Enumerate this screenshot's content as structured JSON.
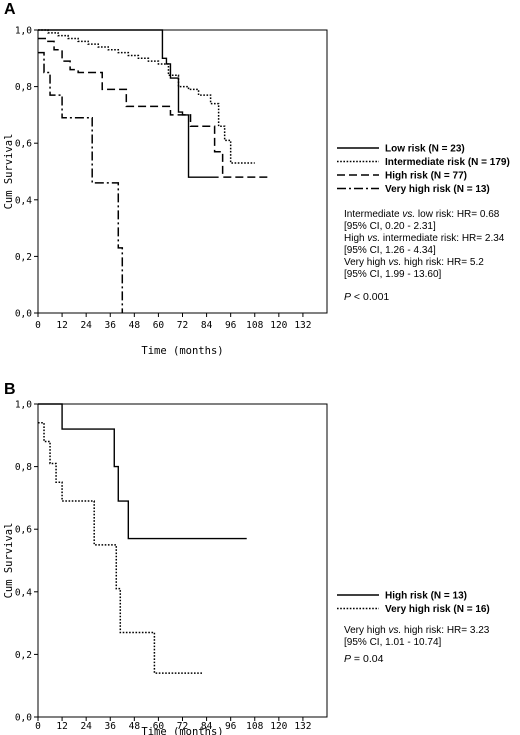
{
  "chart_data": [
    {
      "panel": "A",
      "type": "line",
      "xlabel": "Time (months)",
      "ylabel": "Cum Survival",
      "xlim": [
        0,
        144
      ],
      "ylim": [
        0,
        1.0
      ],
      "x_ticks": [
        "0",
        "12",
        "24",
        "36",
        "48",
        "60",
        "72",
        "84",
        "96",
        "108",
        "120",
        "132"
      ],
      "y_ticks": [
        "1,0",
        "0,8",
        "0,6",
        "0,4",
        "0,2",
        "0,0"
      ],
      "grid": false,
      "legend_position": "right",
      "series": [
        {
          "name": "Low risk (N = 23)",
          "style": "solid",
          "x": [
            0,
            60,
            62,
            64,
            66,
            70,
            72,
            75,
            90
          ],
          "y": [
            1.0,
            1.0,
            0.9,
            0.88,
            0.83,
            0.71,
            0.7,
            0.48,
            0.48
          ]
        },
        {
          "name": "Intermediate risk (N = 179)",
          "style": "dotted",
          "x": [
            0,
            5,
            10,
            15,
            20,
            25,
            30,
            35,
            40,
            45,
            50,
            55,
            60,
            65,
            70,
            75,
            80,
            86,
            90,
            93,
            96,
            108
          ],
          "y": [
            1.0,
            0.99,
            0.98,
            0.97,
            0.96,
            0.95,
            0.94,
            0.93,
            0.92,
            0.91,
            0.9,
            0.89,
            0.88,
            0.84,
            0.8,
            0.79,
            0.77,
            0.74,
            0.66,
            0.61,
            0.53,
            0.53
          ]
        },
        {
          "name": "High risk (N = 77)",
          "style": "dashed",
          "x": [
            0,
            4,
            8,
            12,
            16,
            20,
            28,
            32,
            40,
            44,
            64,
            66,
            72,
            76,
            84,
            88,
            92,
            116
          ],
          "y": [
            0.97,
            0.96,
            0.93,
            0.89,
            0.86,
            0.85,
            0.85,
            0.79,
            0.79,
            0.73,
            0.73,
            0.7,
            0.7,
            0.66,
            0.66,
            0.57,
            0.48,
            0.48
          ]
        },
        {
          "name": "Very high risk (N = 13)",
          "style": "dashdot",
          "x": [
            0,
            3,
            6,
            9,
            12,
            19,
            27,
            36,
            40,
            42
          ],
          "y": [
            0.92,
            0.85,
            0.77,
            0.77,
            0.69,
            0.69,
            0.46,
            0.46,
            0.23,
            0.0
          ]
        }
      ],
      "annotations": [
        "Intermediate vs. low risk: HR= 0.68",
        "[95% CI, 0.20 - 2.31]",
        "High vs. intermediate risk: HR= 2.34",
        "[95% CI, 1.26 - 4.34]",
        "Very high vs. high risk: HR= 5.2",
        "[95% CI, 1.99 - 13.60]"
      ],
      "p_label": "P",
      "p_value": "< 0.001"
    },
    {
      "panel": "B",
      "type": "line",
      "xlabel": "Time (months)",
      "ylabel": "Cum Survival",
      "xlim": [
        0,
        144
      ],
      "ylim": [
        0,
        1.0
      ],
      "x_ticks": [
        "0",
        "12",
        "24",
        "36",
        "48",
        "60",
        "72",
        "84",
        "96",
        "108",
        "120",
        "132"
      ],
      "y_ticks": [
        "1,0",
        "0,8",
        "0,6",
        "0,4",
        "0,2",
        "0,0"
      ],
      "grid": false,
      "legend_position": "right",
      "series": [
        {
          "name": "High risk (N = 13)",
          "style": "solid",
          "x": [
            0,
            12,
            36,
            38,
            40,
            45,
            104
          ],
          "y": [
            1.0,
            0.92,
            0.92,
            0.8,
            0.69,
            0.57,
            0.57
          ]
        },
        {
          "name": "Very high risk (N = 16)",
          "style": "dotted",
          "x": [
            0,
            3,
            6,
            9,
            12,
            21,
            28,
            39,
            41,
            43,
            53,
            58,
            82
          ],
          "y": [
            0.94,
            0.88,
            0.81,
            0.75,
            0.69,
            0.69,
            0.55,
            0.41,
            0.27,
            0.27,
            0.27,
            0.14,
            0.14
          ]
        }
      ],
      "annotations": [
        "Very high vs. high risk: HR= 3.23",
        "[95% CI, 1.01 - 10.74]"
      ],
      "p_label": "P",
      "p_value": "= 0.04"
    }
  ]
}
